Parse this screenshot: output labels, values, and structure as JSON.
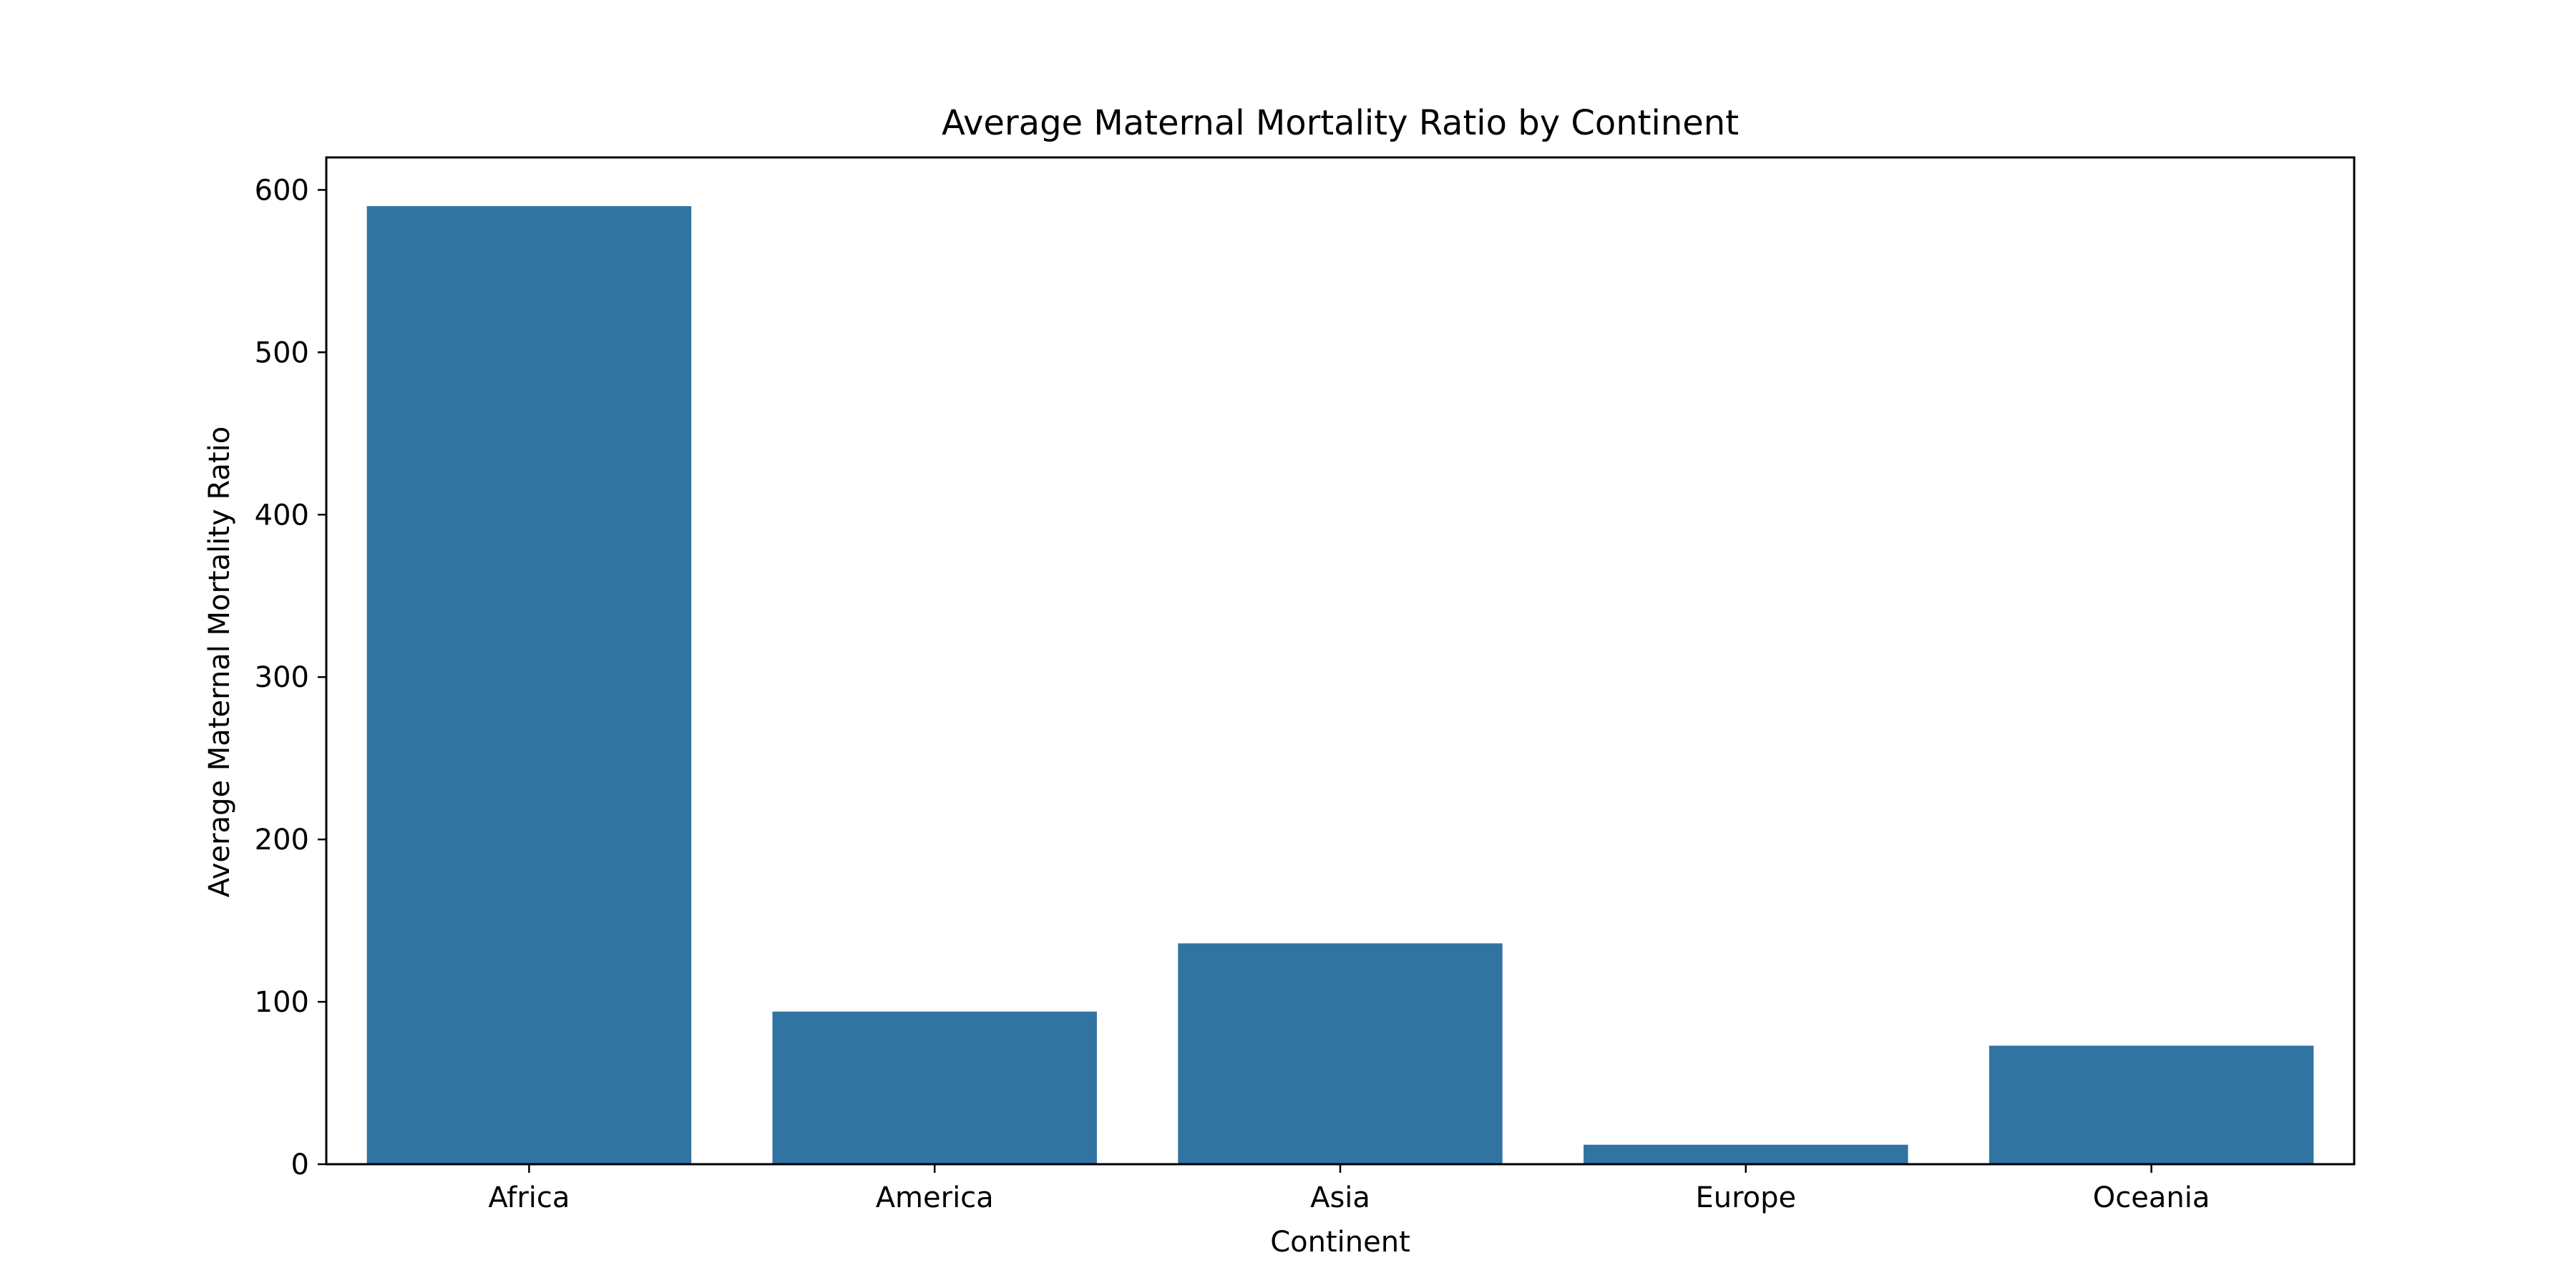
{
  "chart_data": {
    "type": "bar",
    "title": "Average Maternal Mortality Ratio by Continent",
    "xlabel": "Continent",
    "ylabel": "Average Maternal Mortality Ratio",
    "categories": [
      "Africa",
      "America",
      "Asia",
      "Europe",
      "Oceania"
    ],
    "values": [
      590,
      94,
      136,
      12,
      73
    ],
    "ylim": [
      0,
      620
    ],
    "yticks": [
      0,
      100,
      200,
      300,
      400,
      500,
      600
    ],
    "ytick_labels": [
      "0",
      "100",
      "200",
      "300",
      "400",
      "500",
      "600"
    ],
    "grid": false,
    "legend": "none",
    "bar_color": "#3274a1"
  }
}
